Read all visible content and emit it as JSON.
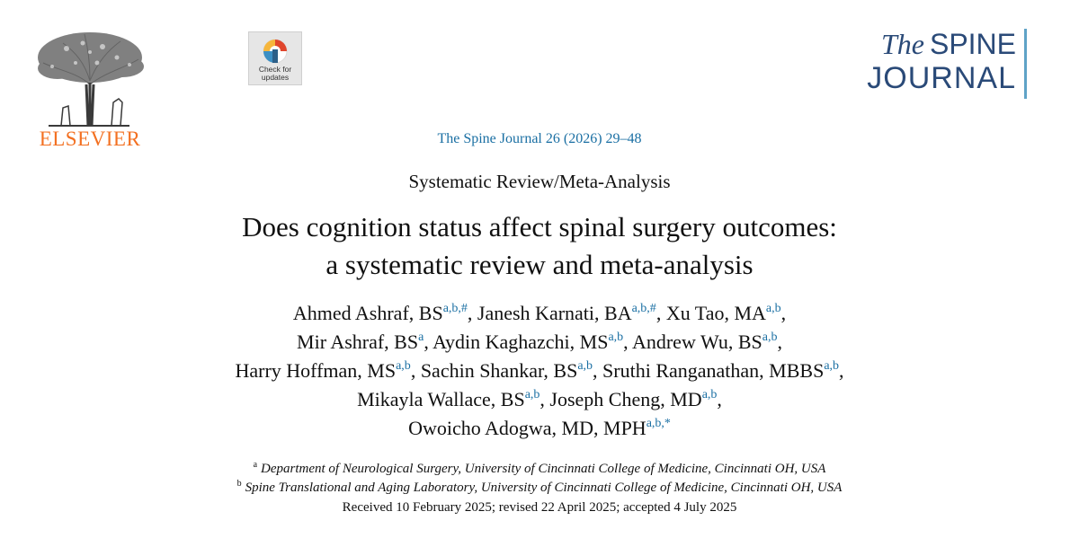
{
  "publisher": {
    "name": "ELSEVIER"
  },
  "update_badge": {
    "label_line1": "Check for",
    "label_line2": "updates"
  },
  "journal_logo": {
    "the": "The",
    "spine": "SPINE",
    "journal": "JOURNAL"
  },
  "citation": "The Spine Journal 26 (2026) 29–48",
  "article_type": "Systematic Review/Meta-Analysis",
  "title": {
    "line1": "Does cognition status affect spinal surgery outcomes:",
    "line2": "a systematic review and meta-analysis"
  },
  "authors": [
    {
      "name": "Ahmed Ashraf, BS",
      "sup": "a,b,#"
    },
    {
      "name": "Janesh Karnati, BA",
      "sup": "a,b,#"
    },
    {
      "name": "Xu Tao, MA",
      "sup": "a,b"
    },
    {
      "name": "Mir Ashraf, BS",
      "sup": "a"
    },
    {
      "name": "Aydin Kaghazchi, MS",
      "sup": "a,b"
    },
    {
      "name": "Andrew Wu, BS",
      "sup": "a,b"
    },
    {
      "name": "Harry Hoffman, MS",
      "sup": "a,b"
    },
    {
      "name": "Sachin Shankar, BS",
      "sup": "a,b"
    },
    {
      "name": "Sruthi Ranganathan, MBBS",
      "sup": "a,b"
    },
    {
      "name": "Mikayla Wallace, BS",
      "sup": "a,b"
    },
    {
      "name": "Joseph Cheng, MD",
      "sup": "a,b"
    },
    {
      "name": "Owoicho Adogwa, MD, MPH",
      "sup": "a,b,*"
    }
  ],
  "affiliations": [
    {
      "mark": "a",
      "text": "Department of Neurological Surgery, University of Cincinnati College of Medicine, Cincinnati OH, USA"
    },
    {
      "mark": "b",
      "text": "Spine Translational and Aging Laboratory, University of Cincinnati College of Medicine, Cincinnati OH, USA"
    }
  ],
  "received": "Received 10 February 2025; revised 22 April 2025; accepted 4 July 2025",
  "colors": {
    "link_blue": "#1a6fa3",
    "elsevier_orange": "#f37021",
    "journal_navy": "#2a4a78",
    "journal_bar": "#5fa3c7"
  }
}
